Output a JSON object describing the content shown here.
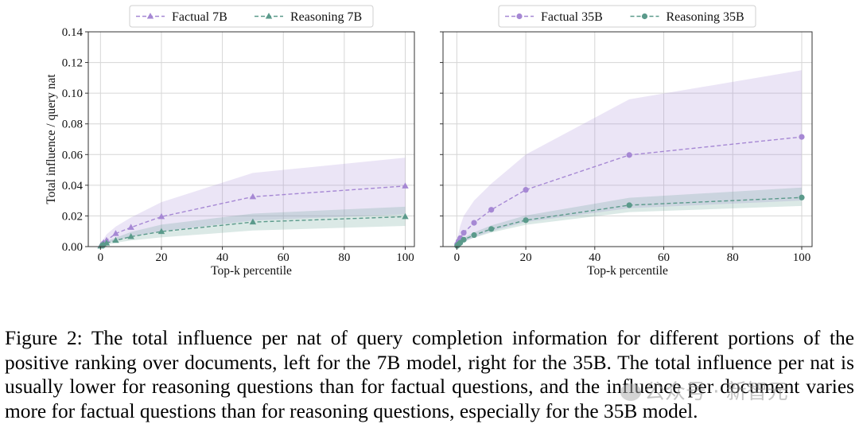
{
  "chart_data": [
    {
      "type": "line",
      "xlabel": "Top-k percentile",
      "ylabel": "Total influence / query nat",
      "xlim": [
        -4,
        103
      ],
      "ylim": [
        0,
        0.14
      ],
      "xticks": [
        0,
        20,
        40,
        60,
        80,
        100
      ],
      "yticks": [
        0,
        0.02,
        0.04,
        0.06,
        0.08,
        0.1,
        0.12,
        0.14
      ],
      "ytick_labels": [
        "0.00",
        "0.02",
        "0.04",
        "0.06",
        "0.08",
        "0.10",
        "0.12",
        "0.14"
      ],
      "grid": true,
      "legend": "top-center",
      "series": [
        {
          "name": "Factual 7B",
          "color": "#a688d4",
          "marker": "triangle",
          "x": [
            0.1,
            0.5,
            1,
            2,
            5,
            10,
            20,
            50,
            100
          ],
          "values": [
            0.0005,
            0.0015,
            0.0025,
            0.004,
            0.0085,
            0.0125,
            0.0195,
            0.0325,
            0.0395
          ],
          "band_upper": [
            0.001,
            0.003,
            0.005,
            0.008,
            0.013,
            0.019,
            0.029,
            0.048,
            0.058
          ],
          "band_lower": [
            0.0002,
            0.0007,
            0.0012,
            0.002,
            0.004,
            0.0065,
            0.01,
            0.017,
            0.021
          ]
        },
        {
          "name": "Reasoning 7B",
          "color": "#5b9a8b",
          "marker": "triangle",
          "x": [
            0.1,
            0.5,
            1,
            2,
            5,
            10,
            20,
            50,
            100
          ],
          "values": [
            0.0003,
            0.0008,
            0.0013,
            0.0023,
            0.004,
            0.0065,
            0.0098,
            0.016,
            0.0195
          ],
          "band_upper": [
            0.0005,
            0.0012,
            0.0018,
            0.0035,
            0.0058,
            0.0095,
            0.0143,
            0.0215,
            0.026
          ],
          "band_lower": [
            0.0001,
            0.0004,
            0.0008,
            0.0013,
            0.0025,
            0.004,
            0.006,
            0.0105,
            0.0135
          ]
        }
      ]
    },
    {
      "type": "line",
      "xlabel": "Top-k percentile",
      "ylabel": "",
      "xlim": [
        -4,
        103
      ],
      "ylim": [
        0,
        0.14
      ],
      "xticks": [
        0,
        20,
        40,
        60,
        80,
        100
      ],
      "yticks": [
        0,
        0.02,
        0.04,
        0.06,
        0.08,
        0.1,
        0.12,
        0.14
      ],
      "grid": true,
      "legend": "top-center",
      "series": [
        {
          "name": "Factual 35B",
          "color": "#a688d4",
          "marker": "circle",
          "x": [
            0.1,
            0.5,
            1,
            2,
            5,
            10,
            20,
            50,
            100
          ],
          "values": [
            0.0015,
            0.0035,
            0.0055,
            0.009,
            0.0155,
            0.024,
            0.037,
            0.0597,
            0.0715
          ],
          "band_upper": [
            0.004,
            0.009,
            0.0135,
            0.02,
            0.03,
            0.041,
            0.06,
            0.096,
            0.115
          ],
          "band_lower": [
            0.0005,
            0.0012,
            0.002,
            0.003,
            0.006,
            0.01,
            0.016,
            0.025,
            0.03
          ]
        },
        {
          "name": "Reasoning 35B",
          "color": "#5b9a8b",
          "marker": "circle",
          "x": [
            0.1,
            0.5,
            1,
            2,
            5,
            10,
            20,
            50,
            100
          ],
          "values": [
            0.0005,
            0.0015,
            0.0025,
            0.0045,
            0.0075,
            0.0115,
            0.0172,
            0.027,
            0.032
          ],
          "band_upper": [
            0.0008,
            0.002,
            0.0033,
            0.0058,
            0.0093,
            0.0138,
            0.0203,
            0.0318,
            0.0385
          ],
          "band_lower": [
            0.0003,
            0.001,
            0.0018,
            0.0033,
            0.0058,
            0.0092,
            0.0142,
            0.0225,
            0.0265
          ]
        }
      ]
    }
  ],
  "caption": "Figure 2: The total influence per nat of query completion information for different portions of the positive ranking over documents, left for the 7B model, right for the 35B. The total influence per nat is usually lower for reasoning questions than for factual questions, and the influence per document varies more for factual questions than for reasoning questions, especially for the 35B model.",
  "watermark": "公众号 · 新智元"
}
